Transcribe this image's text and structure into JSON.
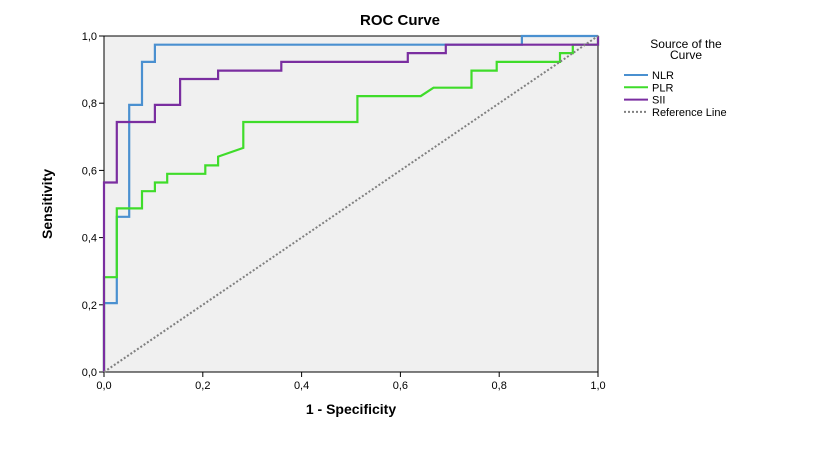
{
  "chart_data": {
    "type": "line",
    "title": "ROC Curve",
    "xlabel": "1 - Specificity",
    "ylabel": "Sensitivity",
    "xlim": [
      0,
      1
    ],
    "ylim": [
      0,
      1
    ],
    "xticks": [
      "0,0",
      "0,2",
      "0,4",
      "0,6",
      "0,8",
      "1,0"
    ],
    "yticks": [
      "0,0",
      "0,2",
      "0,4",
      "0,6",
      "0,8",
      "1,0"
    ],
    "grid": false,
    "legend": {
      "placement": "right",
      "title_lines": [
        "Source of the",
        "Curve"
      ]
    },
    "series": [
      {
        "name": "NLR",
        "color": "#4a90d0",
        "style": "solid",
        "points": [
          [
            0,
            0
          ],
          [
            0,
            0.205
          ],
          [
            0.026,
            0.205
          ],
          [
            0.026,
            0.462
          ],
          [
            0.051,
            0.462
          ],
          [
            0.051,
            0.795
          ],
          [
            0.077,
            0.795
          ],
          [
            0.077,
            0.923
          ],
          [
            0.103,
            0.923
          ],
          [
            0.103,
            0.974
          ],
          [
            0.846,
            0.974
          ],
          [
            0.846,
            1.0
          ],
          [
            1.0,
            1.0
          ]
        ]
      },
      {
        "name": "PLR",
        "color": "#3fdc2a",
        "style": "solid",
        "points": [
          [
            0,
            0
          ],
          [
            0,
            0.282
          ],
          [
            0.026,
            0.282
          ],
          [
            0.026,
            0.487
          ],
          [
            0.077,
            0.487
          ],
          [
            0.077,
            0.538
          ],
          [
            0.103,
            0.538
          ],
          [
            0.103,
            0.564
          ],
          [
            0.128,
            0.564
          ],
          [
            0.128,
            0.59
          ],
          [
            0.205,
            0.59
          ],
          [
            0.205,
            0.615
          ],
          [
            0.231,
            0.615
          ],
          [
            0.231,
            0.641
          ],
          [
            0.282,
            0.667
          ],
          [
            0.282,
            0.744
          ],
          [
            0.513,
            0.744
          ],
          [
            0.513,
            0.821
          ],
          [
            0.641,
            0.821
          ],
          [
            0.667,
            0.846
          ],
          [
            0.744,
            0.846
          ],
          [
            0.744,
            0.897
          ],
          [
            0.795,
            0.897
          ],
          [
            0.795,
            0.923
          ],
          [
            0.923,
            0.923
          ],
          [
            0.923,
            0.949
          ],
          [
            0.949,
            0.949
          ],
          [
            0.949,
            0.974
          ],
          [
            1.0,
            0.974
          ],
          [
            1.0,
            1.0
          ]
        ]
      },
      {
        "name": "SII",
        "color": "#7a2ea0",
        "style": "solid",
        "points": [
          [
            0,
            0
          ],
          [
            0,
            0.564
          ],
          [
            0.026,
            0.564
          ],
          [
            0.026,
            0.744
          ],
          [
            0.103,
            0.744
          ],
          [
            0.103,
            0.795
          ],
          [
            0.154,
            0.795
          ],
          [
            0.154,
            0.872
          ],
          [
            0.231,
            0.872
          ],
          [
            0.231,
            0.897
          ],
          [
            0.359,
            0.897
          ],
          [
            0.359,
            0.923
          ],
          [
            0.615,
            0.923
          ],
          [
            0.615,
            0.949
          ],
          [
            0.692,
            0.949
          ],
          [
            0.692,
            0.974
          ],
          [
            1.0,
            0.974
          ],
          [
            1.0,
            1.0
          ]
        ]
      },
      {
        "name": "Reference Line",
        "color": "#808080",
        "style": "dotted",
        "points": [
          [
            0,
            0
          ],
          [
            1,
            1
          ]
        ]
      }
    ]
  }
}
